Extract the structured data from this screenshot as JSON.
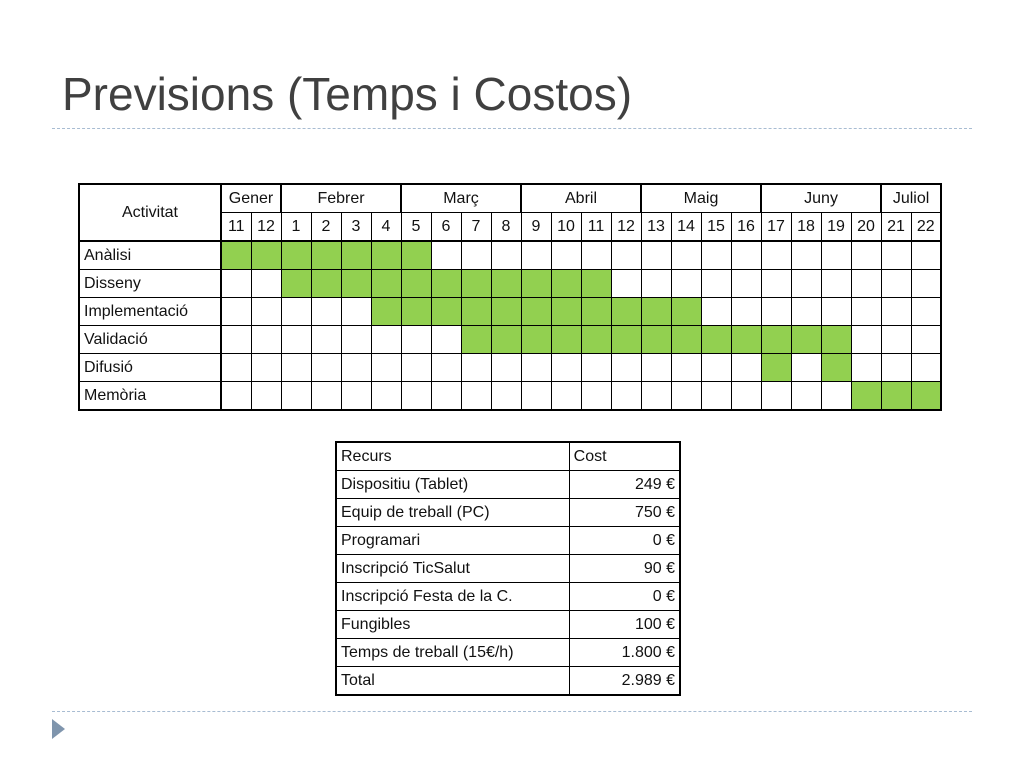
{
  "slide": {
    "title": "Previsions (Temps i Costos)"
  },
  "gantt": {
    "activity_header": "Activitat",
    "months": [
      {
        "label": "Gener",
        "span": 2
      },
      {
        "label": "Febrer",
        "span": 4
      },
      {
        "label": "Març",
        "span": 4
      },
      {
        "label": "Abril",
        "span": 4
      },
      {
        "label": "Maig",
        "span": 4
      },
      {
        "label": "Juny",
        "span": 4
      },
      {
        "label": "Juliol",
        "span": 2
      }
    ],
    "weeks": [
      "11",
      "12",
      "1",
      "2",
      "3",
      "4",
      "5",
      "6",
      "7",
      "8",
      "9",
      "10",
      "11",
      "12",
      "13",
      "14",
      "15",
      "16",
      "17",
      "18",
      "19",
      "20",
      "21",
      "22"
    ],
    "rows": [
      {
        "activity": "Anàlisi",
        "active": [
          0,
          1,
          2,
          3,
          4,
          5,
          6
        ]
      },
      {
        "activity": "Disseny",
        "active": [
          2,
          3,
          4,
          5,
          6,
          7,
          8,
          9,
          10,
          11,
          12
        ]
      },
      {
        "activity": "Implementació",
        "active": [
          5,
          6,
          7,
          8,
          9,
          10,
          11,
          12,
          13,
          14,
          15
        ]
      },
      {
        "activity": "Validació",
        "active": [
          8,
          9,
          10,
          11,
          12,
          13,
          14,
          15,
          16,
          17,
          18,
          19,
          20
        ]
      },
      {
        "activity": "Difusió",
        "active": [
          18,
          20
        ]
      },
      {
        "activity": "Memòria",
        "active": [
          21,
          22,
          23
        ]
      }
    ],
    "active_color": "#92d050"
  },
  "costs": {
    "header": {
      "resource": "Recurs",
      "cost": "Cost"
    },
    "rows": [
      {
        "resource": "Dispositiu (Tablet)",
        "cost": "249 €"
      },
      {
        "resource": "Equip de treball (PC)",
        "cost": "750 €"
      },
      {
        "resource": "Programari",
        "cost": "0 €"
      },
      {
        "resource": "Inscripció TicSalut",
        "cost": "90 €"
      },
      {
        "resource": "Inscripció Festa de la C.",
        "cost": "0 €"
      },
      {
        "resource": "Fungibles",
        "cost": "100 €"
      },
      {
        "resource": "Temps de treball (15€/h)",
        "cost": "1.800 €"
      },
      {
        "resource": "Total",
        "cost": "2.989 €"
      }
    ]
  }
}
